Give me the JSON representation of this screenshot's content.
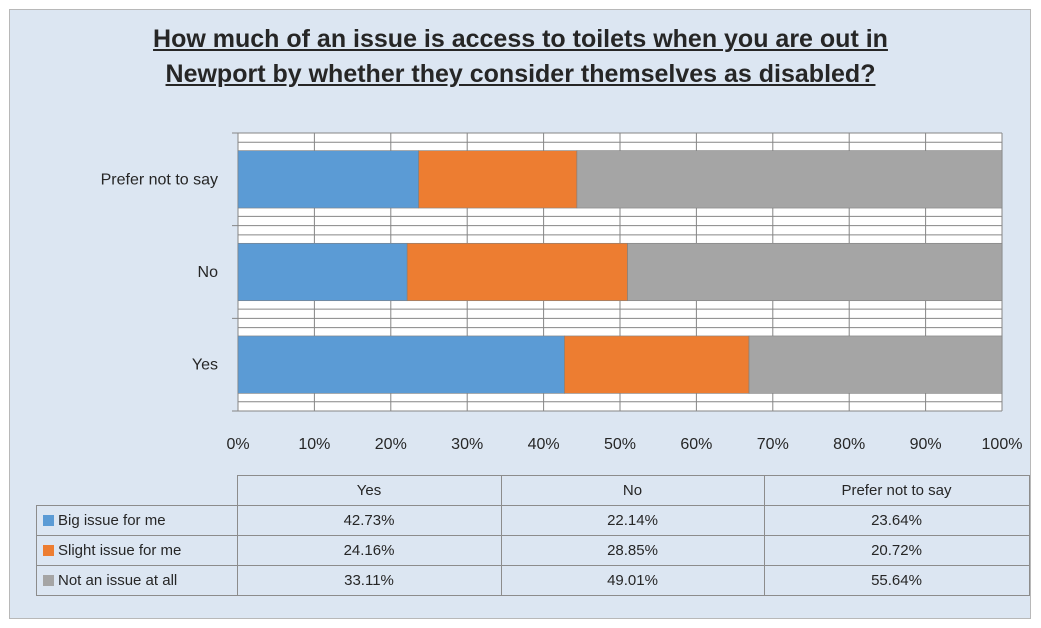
{
  "title_line1": "How much of an issue is access to toilets when you are out in",
  "title_line2": "Newport by whether they consider themselves as disabled?",
  "chart_data": {
    "type": "bar",
    "orientation": "horizontal",
    "stacked": "percent",
    "categories": [
      "Yes",
      "No",
      "Prefer not to say"
    ],
    "category_order_top_to_bottom": [
      "Prefer not to say",
      "No",
      "Yes"
    ],
    "series": [
      {
        "name": "Big issue for me",
        "color": "#5b9bd5",
        "values": [
          42.73,
          22.14,
          23.64
        ],
        "labels": [
          "42.73%",
          "22.14%",
          "23.64%"
        ]
      },
      {
        "name": "Slight issue for me",
        "color": "#ed7d31",
        "values": [
          24.16,
          28.85,
          20.72
        ],
        "labels": [
          "24.16%",
          "28.85%",
          "20.72%"
        ]
      },
      {
        "name": "Not an issue at all",
        "color": "#a5a5a5",
        "values": [
          33.11,
          49.01,
          55.64
        ],
        "labels": [
          "33.11%",
          "49.01%",
          "55.64%"
        ]
      }
    ],
    "xlim": [
      0,
      100
    ],
    "xticks": [
      "0%",
      "10%",
      "20%",
      "30%",
      "40%",
      "50%",
      "60%",
      "70%",
      "80%",
      "90%",
      "100%"
    ],
    "grid": true,
    "legend": "data table below chart"
  }
}
